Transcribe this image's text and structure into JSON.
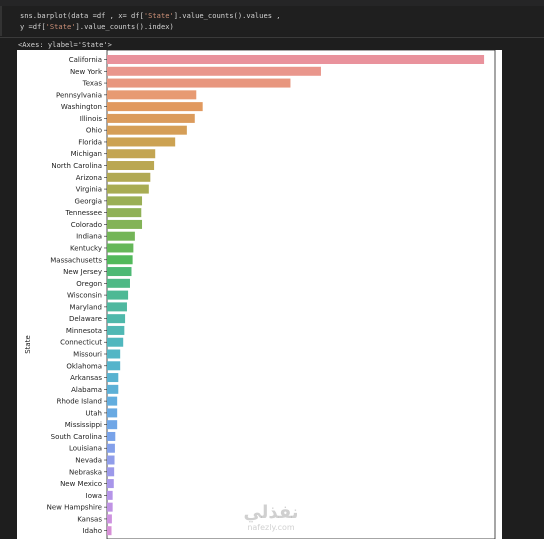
{
  "code": {
    "line1_pre": "sns.barplot(data =df , x= df[",
    "line1_str": "'State'",
    "line1_post": "].value_counts().values ,",
    "line2_pre": "y =df[",
    "line2_str": "'State'",
    "line2_post": "].value_counts().index)"
  },
  "output_repr": "<Axes: ylabel='State'>",
  "watermark": {
    "arabic": "نفذلي",
    "latin": "nafezly.com"
  },
  "chart_data": {
    "type": "bar",
    "orientation": "horizontal",
    "ylabel": "State",
    "xlabel": "",
    "xlim": [
      0,
      1030
    ],
    "grid": false,
    "categories": [
      "California",
      "New York",
      "Texas",
      "Pennsylvania",
      "Washington",
      "Illinois",
      "Ohio",
      "Florida",
      "Michigan",
      "North Carolina",
      "Arizona",
      "Virginia",
      "Georgia",
      "Tennessee",
      "Colorado",
      "Indiana",
      "Kentucky",
      "Massachusetts",
      "New Jersey",
      "Oregon",
      "Wisconsin",
      "Maryland",
      "Delaware",
      "Minnesota",
      "Connecticut",
      "Missouri",
      "Oklahoma",
      "Arkansas",
      "Alabama",
      "Rhode Island",
      "Utah",
      "Mississippi",
      "South Carolina",
      "Louisiana",
      "Nevada",
      "Nebraska",
      "New Mexico",
      "Iowa",
      "New Hampshire",
      "Kansas",
      "Idaho"
    ],
    "values": [
      1001,
      568,
      487,
      237,
      254,
      233,
      212,
      181,
      128,
      125,
      115,
      111,
      93,
      91,
      93,
      74,
      70,
      68,
      65,
      61,
      56,
      53,
      48,
      46,
      43,
      35,
      35,
      30,
      30,
      27,
      27,
      27,
      22,
      21,
      20,
      19,
      18,
      15,
      15,
      13,
      12
    ],
    "colors": [
      "#e9929c",
      "#e9968c",
      "#e8967e",
      "#e79a72",
      "#e1995f",
      "#db9b5c",
      "#d59e57",
      "#cca252",
      "#c3a552",
      "#baa752",
      "#b1a953",
      "#a8ac53",
      "#9aaf55",
      "#8fb156",
      "#83b357",
      "#74b558",
      "#65b759",
      "#52b95b",
      "#4db974",
      "#4eb985",
      "#4eb994",
      "#4fb89f",
      "#4fb8aa",
      "#50b8b4",
      "#50b7be",
      "#52b6c5",
      "#55b4cb",
      "#58b2d0",
      "#5cb0d6",
      "#62adde",
      "#68a9e2",
      "#6fa6e6",
      "#79a3e9",
      "#84a0ea",
      "#909dea",
      "#9c99ea",
      "#a896ea",
      "#b594e8",
      "#c093e4",
      "#cd92df",
      "#d78fd6"
    ]
  }
}
